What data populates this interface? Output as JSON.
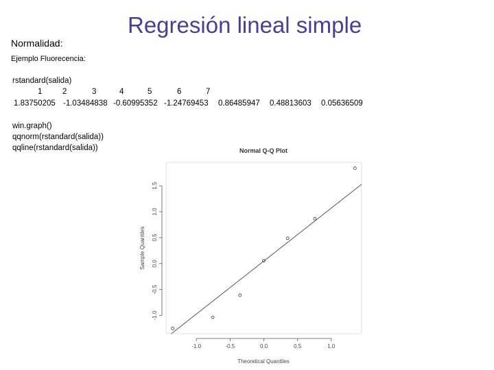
{
  "slide": {
    "title": "Regresión lineal simple",
    "section": "Normalidad:",
    "example": "Ejemplo Fluorecencia:"
  },
  "code_output": {
    "command": "rstandard(salida)",
    "indices": [
      "1",
      "2",
      "3",
      "4",
      "5",
      "6",
      "7"
    ],
    "values": [
      "1.83750205",
      "-1.03484838",
      "-0.60995352",
      "-1.24769453",
      "0.86485947",
      "0.48813603",
      "0.05636509"
    ]
  },
  "code_lines": [
    "win.graph()",
    "qqnorm(rstandard(salida))",
    "qqline(rstandard(salida))"
  ],
  "chart_data": {
    "type": "scatter",
    "title": "Normal Q-Q Plot",
    "xlabel": "Theoretical Quantiles",
    "ylabel": "Sample Quantiles",
    "xlim": [
      -1.45,
      1.45
    ],
    "ylim": [
      -1.35,
      1.95
    ],
    "x_ticks": [
      "-1.0",
      "-0.5",
      "0.0",
      "0.5",
      "1.0"
    ],
    "y_ticks": [
      "-1.0",
      "-0.5",
      "0.0",
      "0.5",
      "1.0",
      "1.5"
    ],
    "points": [
      {
        "x": -1.352,
        "y": -1.248
      },
      {
        "x": -0.757,
        "y": -1.035
      },
      {
        "x": -0.353,
        "y": -0.61
      },
      {
        "x": 0.0,
        "y": 0.056
      },
      {
        "x": 0.353,
        "y": 0.488
      },
      {
        "x": 0.757,
        "y": 0.865
      },
      {
        "x": 1.352,
        "y": 1.838
      }
    ],
    "qqline": {
      "intercept": 0.049,
      "slope": 1.02
    }
  }
}
